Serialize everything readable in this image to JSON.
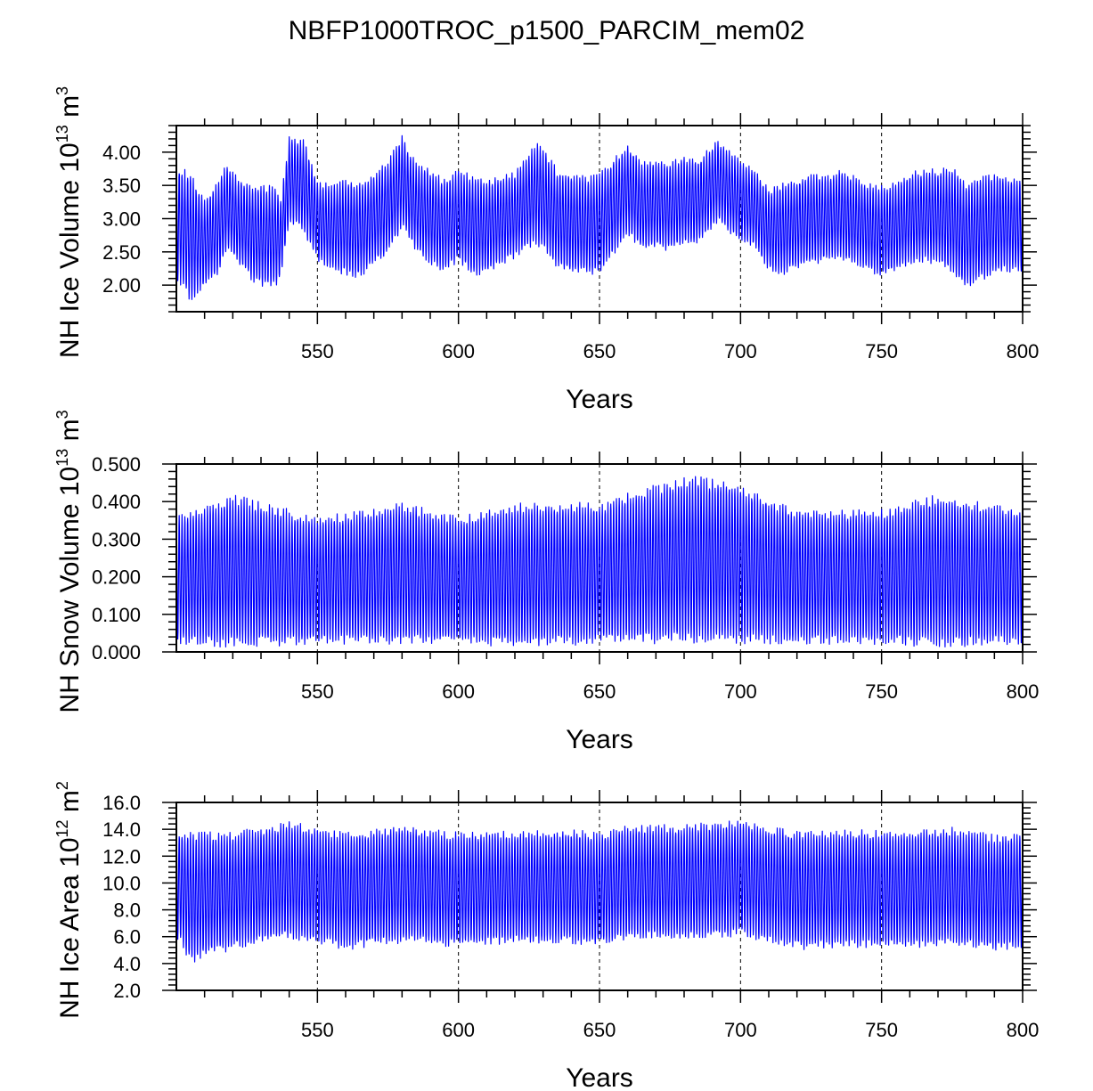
{
  "figure_title": "NBFP1000TROC_p1500_PARCIM_mem02",
  "colors": {
    "series": "#0000ff",
    "axis": "#000000",
    "grid": "#000000"
  },
  "chart_data": [
    {
      "type": "line",
      "title": "",
      "xlabel": "Years",
      "ylabel": {
        "prefix": "NH Ice Volume 10",
        "exp": "13",
        "unit": " m",
        "unit_exp": "3"
      },
      "xlim": [
        500,
        800
      ],
      "ylim": [
        1.6,
        4.4
      ],
      "xticks": [
        550,
        600,
        650,
        700,
        750,
        800
      ],
      "xtick_labels": [
        "550",
        "600",
        "650",
        "700",
        "750",
        "800"
      ],
      "yticks": [
        2.0,
        2.5,
        3.0,
        3.5,
        4.0
      ],
      "ytick_labels": [
        "2.00",
        "2.50",
        "3.00",
        "3.50",
        "4.00"
      ],
      "grid": "vertical dashed at major x ticks",
      "series": [
        {
          "values_description": "monthly values, seasonal cycle",
          "envelope_years": [
            500,
            505,
            510,
            515,
            518,
            522,
            528,
            535,
            537,
            540,
            545,
            550,
            555,
            560,
            565,
            570,
            575,
            580,
            585,
            590,
            595,
            600,
            605,
            610,
            615,
            620,
            625,
            628,
            635,
            640,
            645,
            650,
            655,
            660,
            665,
            670,
            675,
            680,
            685,
            692,
            698,
            705,
            710,
            715,
            720,
            725,
            730,
            735,
            740,
            745,
            750,
            755,
            760,
            765,
            770,
            775,
            780,
            785,
            790,
            795,
            800
          ],
          "max": [
            3.8,
            3.7,
            3.3,
            3.6,
            3.85,
            3.6,
            3.5,
            3.5,
            3.3,
            4.25,
            4.2,
            3.6,
            3.5,
            3.6,
            3.55,
            3.7,
            3.9,
            4.25,
            3.85,
            3.75,
            3.6,
            3.75,
            3.65,
            3.6,
            3.65,
            3.7,
            4.0,
            4.2,
            3.75,
            3.7,
            3.65,
            3.7,
            3.9,
            4.15,
            3.85,
            3.9,
            3.85,
            3.95,
            3.9,
            4.2,
            3.95,
            3.75,
            3.45,
            3.55,
            3.6,
            3.7,
            3.65,
            3.75,
            3.65,
            3.55,
            3.5,
            3.55,
            3.7,
            3.75,
            3.75,
            3.8,
            3.55,
            3.65,
            3.7,
            3.65,
            3.6
          ],
          "min": [
            2.1,
            1.75,
            1.95,
            2.15,
            2.55,
            2.3,
            2.0,
            1.95,
            2.1,
            2.95,
            2.8,
            2.35,
            2.2,
            2.15,
            2.1,
            2.3,
            2.45,
            2.85,
            2.5,
            2.3,
            2.2,
            2.35,
            2.15,
            2.15,
            2.3,
            2.4,
            2.55,
            2.6,
            2.25,
            2.15,
            2.15,
            2.15,
            2.45,
            2.75,
            2.5,
            2.55,
            2.5,
            2.6,
            2.6,
            2.95,
            2.7,
            2.55,
            2.2,
            2.15,
            2.25,
            2.3,
            2.35,
            2.4,
            2.3,
            2.2,
            2.1,
            2.2,
            2.3,
            2.35,
            2.3,
            2.15,
            1.95,
            2.05,
            2.15,
            2.2,
            2.15
          ]
        }
      ]
    },
    {
      "type": "line",
      "title": "",
      "xlabel": "Years",
      "ylabel": {
        "prefix": "NH Snow Volume 10",
        "exp": "13",
        "unit": " m",
        "unit_exp": "3"
      },
      "xlim": [
        500,
        800
      ],
      "ylim": [
        0.0,
        0.5
      ],
      "xticks": [
        550,
        600,
        650,
        700,
        750,
        800
      ],
      "xtick_labels": [
        "550",
        "600",
        "650",
        "700",
        "750",
        "800"
      ],
      "yticks": [
        0.0,
        0.1,
        0.2,
        0.3,
        0.4,
        0.5
      ],
      "ytick_labels": [
        "0.000",
        "0.100",
        "0.200",
        "0.300",
        "0.400",
        "0.500"
      ],
      "grid": "vertical dashed at major x ticks",
      "series": [
        {
          "values_description": "monthly values, seasonal cycle",
          "envelope_years": [
            500,
            520,
            550,
            580,
            600,
            620,
            650,
            680,
            697,
            720,
            750,
            770,
            800
          ],
          "max": [
            0.36,
            0.42,
            0.36,
            0.4,
            0.36,
            0.4,
            0.4,
            0.47,
            0.46,
            0.38,
            0.38,
            0.42,
            0.38
          ],
          "min": [
            0.02,
            0.01,
            0.02,
            0.02,
            0.02,
            0.01,
            0.02,
            0.02,
            0.02,
            0.02,
            0.02,
            0.01,
            0.02
          ]
        }
      ]
    },
    {
      "type": "line",
      "title": "",
      "xlabel": "Years",
      "ylabel": {
        "prefix": "NH Ice Area 10",
        "exp": "12",
        "unit": " m",
        "unit_exp": "2"
      },
      "xlim": [
        500,
        800
      ],
      "ylim": [
        2.0,
        16.0
      ],
      "xticks": [
        550,
        600,
        650,
        700,
        750,
        800
      ],
      "xtick_labels": [
        "550",
        "600",
        "650",
        "700",
        "750",
        "800"
      ],
      "yticks": [
        2.0,
        4.0,
        6.0,
        8.0,
        10.0,
        12.0,
        14.0,
        16.0
      ],
      "ytick_labels": [
        "2.0",
        "4.0",
        "6.0",
        "8.0",
        "10.0",
        "12.0",
        "14.0",
        "16.0"
      ],
      "grid": "vertical dashed at major x ticks",
      "series": [
        {
          "values_description": "monthly values, seasonal cycle",
          "envelope_years": [
            500,
            505,
            520,
            540,
            560,
            580,
            600,
            620,
            640,
            650,
            660,
            680,
            700,
            720,
            740,
            760,
            775,
            790,
            800
          ],
          "max": [
            14.0,
            13.9,
            13.8,
            14.6,
            13.8,
            14.3,
            13.8,
            13.9,
            14.0,
            13.8,
            14.3,
            14.4,
            14.7,
            13.9,
            14.0,
            13.9,
            14.2,
            13.6,
            13.9
          ],
          "min": [
            6.0,
            4.0,
            5.0,
            5.8,
            5.0,
            5.5,
            5.2,
            5.5,
            5.4,
            5.2,
            5.8,
            5.7,
            6.0,
            5.0,
            5.2,
            5.1,
            5.3,
            4.9,
            5.1
          ]
        }
      ]
    }
  ]
}
